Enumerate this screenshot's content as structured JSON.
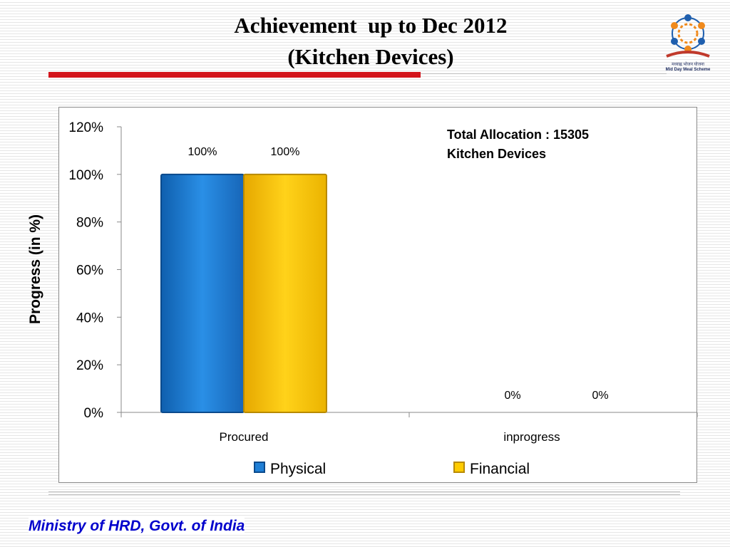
{
  "slide": {
    "title_line1": "Achievement  up to Dec 2012",
    "title_line2": "(Kitchen Devices)",
    "footer": "Ministry of HRD, Govt. of India"
  },
  "logo": {
    "caption_hindi": "मध्याह्न भोजन योजना",
    "caption_english": "Mid Day Meal Scheme"
  },
  "annotation": {
    "line1": "Total Allocation : 15305",
    "line2": "Kitchen Devices"
  },
  "colors": {
    "accent_red": "#d3141b",
    "physical": "#1f7fd6",
    "financial": "#ffcc00",
    "footer_text": "#0000cc"
  },
  "chart_data": {
    "type": "bar",
    "title": "",
    "xlabel": "",
    "ylabel": "Progress (in %)",
    "categories": [
      "Procured",
      "inprogress"
    ],
    "series": [
      {
        "name": "Physical",
        "values": [
          100,
          0
        ],
        "labels": [
          "100%",
          "0%"
        ]
      },
      {
        "name": "Financial",
        "values": [
          100,
          0
        ],
        "labels": [
          "100%",
          "0%"
        ]
      }
    ],
    "ylim": [
      0,
      120
    ],
    "yticks": [
      0,
      20,
      40,
      60,
      80,
      100,
      120
    ],
    "ytick_labels": [
      "0%",
      "20%",
      "40%",
      "60%",
      "80%",
      "100%",
      "120%"
    ],
    "grid": false,
    "legend": "bottom"
  }
}
